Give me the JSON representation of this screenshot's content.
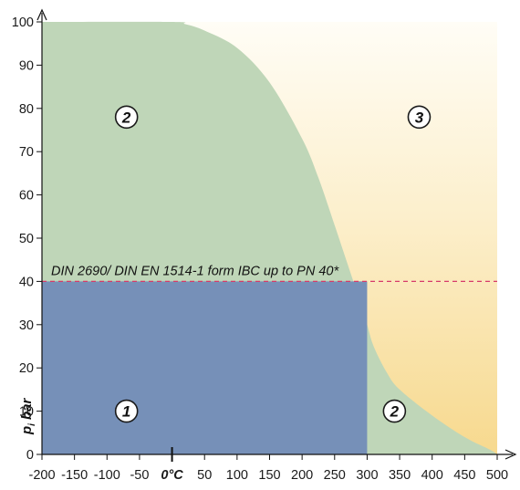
{
  "chart_data": {
    "type": "area",
    "xlabel": "0°C",
    "ylabel": "p_i bar",
    "ylabel_main": "p",
    "ylabel_sub": "i",
    "ylabel_unit": "bar",
    "xlim": [
      -200,
      500
    ],
    "ylim": [
      0,
      100
    ],
    "x_ticks": [
      -200,
      -150,
      -100,
      -50,
      0,
      50,
      100,
      150,
      200,
      250,
      300,
      350,
      400,
      450,
      500
    ],
    "x_tick_labels": [
      "-200",
      "-150",
      "-100",
      "-50",
      "0°C",
      "50",
      "100",
      "150",
      "200",
      "250",
      "300",
      "350",
      "400",
      "450",
      "500"
    ],
    "y_ticks": [
      0,
      10,
      20,
      30,
      40,
      50,
      60,
      70,
      80,
      90,
      100
    ],
    "y_tick_labels": [
      "0",
      "10",
      "20",
      "30",
      "40",
      "50",
      "60",
      "70",
      "80",
      "90",
      "100"
    ],
    "reference_line": {
      "y": 40,
      "label": "DIN 2690/ DIN EN 1514-1 form IBC up to PN 40*",
      "color": "#d63a6a"
    },
    "boundary_curve": {
      "x": [
        -200,
        0,
        20,
        50,
        100,
        150,
        200,
        225,
        250,
        270,
        290,
        300,
        310,
        330,
        350,
        400,
        450,
        490,
        500
      ],
      "y": [
        100,
        100,
        99.5,
        98,
        94,
        86,
        73,
        64,
        53,
        44,
        35,
        30,
        25,
        19,
        15,
        9,
        4,
        1,
        0
      ]
    },
    "regions": [
      {
        "label": "1",
        "desc": "blue",
        "x": [
          -200,
          300
        ],
        "y": [
          0,
          40
        ],
        "color": "#7690b8",
        "label_at": [
          -70,
          10
        ]
      },
      {
        "label": "2",
        "desc": "green upper",
        "color": "#bfd6b8",
        "label_at": [
          -70,
          78
        ]
      },
      {
        "label": "2",
        "desc": "green lower right",
        "color": "#bfd6b8",
        "label_at": [
          342,
          10
        ]
      },
      {
        "label": "3",
        "desc": "cream",
        "colors": [
          "#fdf8ea",
          "#f8dd9a"
        ],
        "label_at": [
          380,
          78
        ]
      }
    ]
  }
}
